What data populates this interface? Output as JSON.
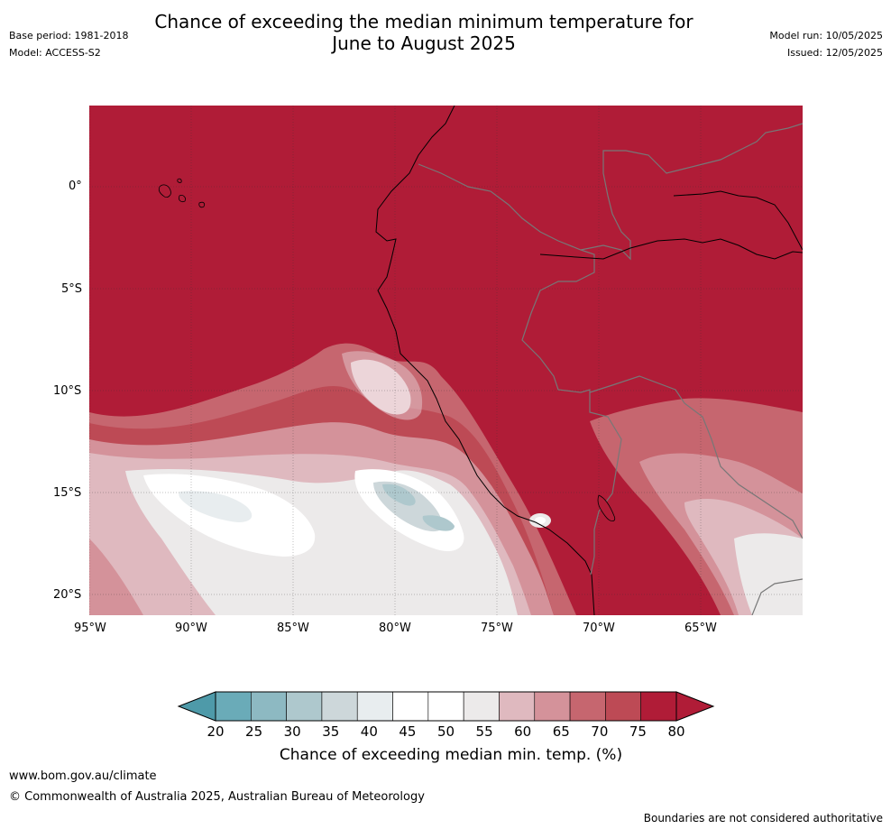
{
  "header": {
    "title_line1": "Chance of exceeding the median minimum temperature for",
    "title_line2": "June to August 2025",
    "base_period": "Base period: 1981-2018",
    "model": "Model: ACCESS-S2",
    "model_run": "Model run: 10/05/2025",
    "issued": "Issued: 12/05/2025"
  },
  "map": {
    "lat_labels": [
      "0°",
      "5°S",
      "10°S",
      "15°S",
      "20°S"
    ],
    "lon_labels": [
      "95°W",
      "90°W",
      "85°W",
      "80°W",
      "75°W",
      "70°W",
      "65°W"
    ],
    "background_color": "#b01c37"
  },
  "colorbar": {
    "ticks": [
      "20",
      "25",
      "30",
      "35",
      "40",
      "45",
      "50",
      "55",
      "60",
      "65",
      "70",
      "75",
      "80"
    ],
    "colors": [
      "#6aabb8",
      "#8db9c2",
      "#aec8cd",
      "#cdd7da",
      "#e8edef",
      "#ffffff",
      "#ffffff",
      "#eceaea",
      "#dfb9bf",
      "#d4929a",
      "#c6666f",
      "#bd4a55",
      "#b01c37"
    ],
    "low_color": "#4e9aa9",
    "high_color": "#b01c37",
    "title": "Chance of exceeding median min. temp. (%)"
  },
  "footer": {
    "website": "www.bom.gov.au/climate",
    "copyright": "© Commonwealth of Australia 2025, Australian Bureau of Meteorology",
    "disclaimer": "Boundaries are not considered authoritative"
  }
}
